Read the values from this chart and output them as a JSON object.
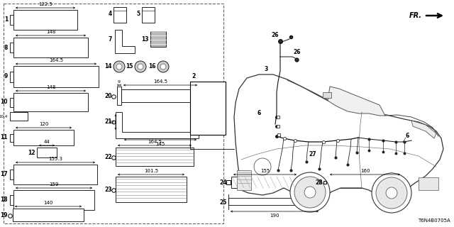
{
  "bg_color": "#ffffff",
  "text_color": "#000000",
  "part_number_ref": "T6N4B0705A",
  "figsize": [
    6.4,
    3.2
  ],
  "dpi": 100
}
